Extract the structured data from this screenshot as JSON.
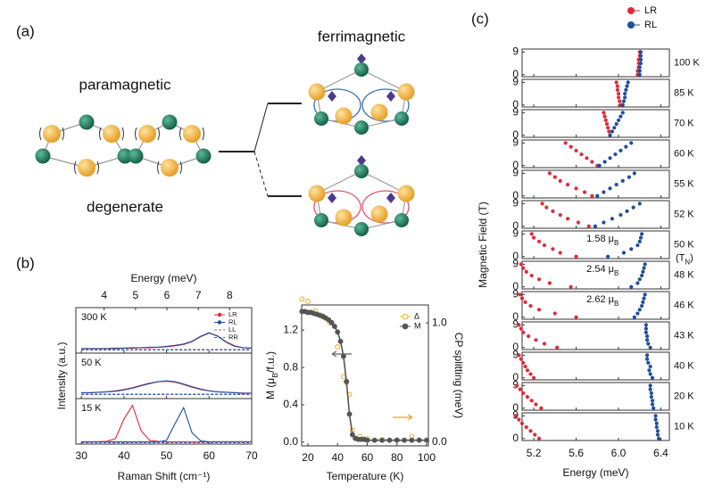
{
  "figure": {
    "panel_labels": [
      "(a)",
      "(b)",
      "(c)"
    ]
  },
  "diagram": {
    "top_left": "paramagnetic",
    "bottom_left": "degenerate",
    "top_right": "ferrimagnetic"
  },
  "chart_data": [
    {
      "type": "spectra",
      "xlabel": "Raman Shift (cm⁻¹)",
      "x2label": "Energy (meV)",
      "ylabel": "Intensity (a.u.)",
      "xlim": [
        28.7,
        70
      ],
      "xticks": [
        30,
        40,
        50,
        60,
        70
      ],
      "x2lim": [
        3.1,
        8.7
      ],
      "x2ticks": [
        4,
        5,
        6,
        7,
        8
      ],
      "ylim": [
        0,
        1
      ],
      "legend_position": "upper right",
      "series": [
        {
          "name": "LR",
          "color": "#e02a3a",
          "line": "solid",
          "marker": "circle"
        },
        {
          "name": "RL",
          "color": "#1f4e9c",
          "line": "solid",
          "marker": "circle"
        },
        {
          "name": "LL",
          "color": "#d0508c",
          "line": "dashed",
          "marker": "none"
        },
        {
          "name": "RR",
          "color": "#3a5fa8",
          "line": "dashed",
          "marker": "none"
        }
      ],
      "x": [
        30,
        32,
        34,
        36,
        38,
        40,
        42,
        44,
        46,
        48,
        50,
        52,
        54,
        56,
        58,
        60,
        62,
        64,
        66,
        68,
        70
      ],
      "panels": [
        {
          "label": "300 K",
          "values": [
            [
              0.1,
              0.1,
              0.1,
              0.1,
              0.1,
              0.11,
              0.11,
              0.12,
              0.12,
              0.13,
              0.14,
              0.16,
              0.19,
              0.25,
              0.36,
              0.44,
              0.38,
              0.25,
              0.16,
              0.12,
              0.11
            ],
            [
              0.1,
              0.1,
              0.1,
              0.1,
              0.11,
              0.11,
              0.12,
              0.12,
              0.13,
              0.13,
              0.15,
              0.17,
              0.2,
              0.26,
              0.37,
              0.45,
              0.37,
              0.24,
              0.15,
              0.12,
              0.11
            ],
            [
              0.08,
              0.08,
              0.08,
              0.08,
              0.08,
              0.08,
              0.08,
              0.08,
              0.08,
              0.08,
              0.08,
              0.08,
              0.08,
              0.08,
              0.08,
              0.08,
              0.08,
              0.08,
              0.08,
              0.08,
              0.08
            ],
            [
              0.07,
              0.07,
              0.07,
              0.07,
              0.07,
              0.07,
              0.07,
              0.07,
              0.07,
              0.07,
              0.07,
              0.07,
              0.07,
              0.07,
              0.07,
              0.07,
              0.07,
              0.07,
              0.07,
              0.07,
              0.07
            ]
          ]
        },
        {
          "label": "50 K",
          "values": [
            [
              0.13,
              0.13,
              0.14,
              0.15,
              0.17,
              0.2,
              0.24,
              0.29,
              0.34,
              0.37,
              0.38,
              0.36,
              0.31,
              0.25,
              0.2,
              0.17,
              0.15,
              0.14,
              0.13,
              0.12,
              0.12
            ],
            [
              0.13,
              0.13,
              0.14,
              0.15,
              0.16,
              0.19,
              0.23,
              0.28,
              0.33,
              0.37,
              0.39,
              0.37,
              0.32,
              0.26,
              0.21,
              0.17,
              0.15,
              0.14,
              0.13,
              0.12,
              0.12
            ],
            [
              0.1,
              0.1,
              0.1,
              0.1,
              0.1,
              0.1,
              0.1,
              0.1,
              0.1,
              0.1,
              0.1,
              0.1,
              0.1,
              0.1,
              0.1,
              0.1,
              0.1,
              0.1,
              0.1,
              0.1,
              0.1
            ],
            [
              0.09,
              0.09,
              0.09,
              0.09,
              0.09,
              0.09,
              0.09,
              0.09,
              0.09,
              0.09,
              0.09,
              0.09,
              0.09,
              0.09,
              0.09,
              0.09,
              0.09,
              0.09,
              0.09,
              0.09,
              0.09
            ]
          ]
        },
        {
          "label": "15 K",
          "values": [
            [
              0.05,
              0.05,
              0.05,
              0.06,
              0.12,
              0.55,
              0.85,
              0.3,
              0.08,
              0.06,
              0.05,
              0.05,
              0.05,
              0.05,
              0.05,
              0.05,
              0.05,
              0.05,
              0.05,
              0.05,
              0.05
            ],
            [
              0.05,
              0.05,
              0.05,
              0.05,
              0.05,
              0.05,
              0.05,
              0.05,
              0.05,
              0.05,
              0.08,
              0.45,
              0.8,
              0.25,
              0.07,
              0.05,
              0.05,
              0.05,
              0.05,
              0.05,
              0.05
            ],
            [
              0.04,
              0.04,
              0.04,
              0.04,
              0.04,
              0.04,
              0.04,
              0.04,
              0.04,
              0.04,
              0.04,
              0.04,
              0.04,
              0.04,
              0.04,
              0.04,
              0.04,
              0.04,
              0.04,
              0.04,
              0.04
            ],
            [
              0.03,
              0.03,
              0.03,
              0.03,
              0.03,
              0.03,
              0.03,
              0.03,
              0.03,
              0.03,
              0.03,
              0.03,
              0.03,
              0.03,
              0.03,
              0.03,
              0.03,
              0.03,
              0.03,
              0.03,
              0.03
            ]
          ]
        }
      ]
    },
    {
      "type": "dualaxis",
      "xlabel": "Temperature (K)",
      "ylabel": {
        "pre": "M (μ",
        "sub": "B",
        "post": "/f.u.)"
      },
      "y2label": "CP splitting (meV)",
      "y2color": "#e8a82a",
      "xlim": [
        15.8,
        101.2
      ],
      "xticks": [
        20,
        40,
        60,
        80,
        100
      ],
      "ylim": [
        -0.04,
        1.47
      ],
      "yticks": [
        {
          "value": 0,
          "label": "0.0"
        },
        {
          "value": 0.4,
          "label": "0.4"
        },
        {
          "value": 0.8,
          "label": "0.8"
        },
        {
          "value": 1.2,
          "label": "1.2"
        }
      ],
      "y2lim": [
        -0.03,
        1.15
      ],
      "y2ticks": [
        {
          "value": 0,
          "label": "0.0"
        },
        {
          "value": 1,
          "label": "1.0"
        }
      ],
      "legend_position": "upper right",
      "series": [
        {
          "name": "Δ",
          "color": "#f2b134",
          "marker": "open-circle",
          "axis": "y2",
          "x": [
            16,
            20,
            25,
            30,
            35,
            40,
            44,
            46,
            48,
            50,
            55,
            60,
            70,
            80,
            90,
            95
          ],
          "values": [
            1.2,
            1.18,
            1.1,
            1.05,
            1.0,
            0.8,
            0.55,
            0.5,
            0.4,
            0.1,
            0.05,
            0.03,
            0.02,
            0.02,
            0.05,
            0.02
          ]
        },
        {
          "name": "M",
          "color": "#555555",
          "marker": "filled-circle",
          "axis": "y",
          "x": [
            16,
            18,
            20,
            22,
            24,
            26,
            28,
            30,
            32,
            34,
            36,
            38,
            40,
            42,
            44,
            46,
            48,
            50,
            52,
            54,
            56,
            58,
            60,
            65,
            70,
            75,
            80,
            85,
            90,
            95,
            100
          ],
          "values": [
            1.4,
            1.4,
            1.39,
            1.39,
            1.38,
            1.37,
            1.36,
            1.35,
            1.33,
            1.31,
            1.28,
            1.24,
            1.18,
            1.08,
            0.92,
            0.65,
            0.3,
            0.08,
            0.04,
            0.03,
            0.03,
            0.03,
            0.02,
            0.02,
            0.02,
            0.02,
            0.02,
            0.02,
            0.02,
            0.02,
            0.02
          ]
        }
      ]
    },
    {
      "type": "scatter",
      "xlabel": "Energy (meV)",
      "ylabel": "Magnetic Field (T)",
      "xlim": [
        5.09,
        6.48
      ],
      "xticks": [
        5.2,
        5.6,
        {
          "value": 6,
          "label": "6.0"
        },
        6.4
      ],
      "ylim": [
        -0.8,
        10.2
      ],
      "yticks": [
        0,
        9
      ],
      "legend_position": "upper right",
      "series": [
        {
          "name": "LR",
          "color": "#e02a3a"
        },
        {
          "name": "RL",
          "color": "#1f4e9c"
        }
      ],
      "fields": [
        0,
        1.5,
        3,
        4.5,
        6,
        7.5,
        9
      ],
      "panels": [
        {
          "label": "100 K",
          "values": [
            [
              6.18,
              6.18,
              6.19,
              6.19,
              6.19,
              6.2,
              6.2
            ],
            [
              6.2,
              6.2,
              6.2,
              6.21,
              6.21,
              6.21,
              6.21
            ]
          ]
        },
        {
          "label": "85 K",
          "values": [
            [
              6.02,
              6.01,
              6.0,
              6.0,
              5.99,
              5.99,
              5.98
            ],
            [
              6.04,
              6.05,
              6.06,
              6.06,
              6.07,
              6.08,
              6.09
            ]
          ]
        },
        {
          "label": "70 K",
          "values": [
            [
              5.92,
              5.91,
              5.9,
              5.89,
              5.88,
              5.87,
              5.86
            ],
            [
              5.92,
              5.94,
              5.96,
              5.98,
              6.0,
              6.02,
              6.04
            ]
          ]
        },
        {
          "label": "60 K",
          "values": [
            [
              5.8,
              5.75,
              5.7,
              5.65,
              5.6,
              5.55,
              5.5
            ],
            [
              5.82,
              5.87,
              5.92,
              5.97,
              6.02,
              6.07,
              6.12
            ]
          ]
        },
        {
          "label": "55 K",
          "values": [
            [
              5.75,
              5.68,
              5.6,
              5.52,
              5.45,
              5.4,
              5.35
            ],
            [
              5.8,
              5.86,
              5.92,
              5.98,
              6.04,
              6.1,
              6.15
            ]
          ]
        },
        {
          "label": "52 K",
          "values": [
            [
              5.72,
              5.62,
              5.52,
              5.45,
              5.38,
              5.32,
              5.28
            ],
            [
              5.78,
              5.86,
              5.94,
              6.02,
              6.08,
              6.14,
              6.2
            ]
          ]
        },
        {
          "label": "50 K",
          "note": {
            "pre": "(T",
            "sub": "N",
            "post": ")"
          },
          "annotation": {
            "pre": "1.58 μ",
            "sub": "B"
          },
          "values": [
            [
              5.6,
              5.45,
              5.38,
              5.3,
              5.25,
              5.2,
              5.18
            ],
            [
              5.9,
              6.05,
              6.12,
              6.18,
              6.2,
              6.21,
              6.22
            ]
          ]
        },
        {
          "label": "48 K",
          "annotation": {
            "pre": "2.54 μ",
            "sub": "B"
          },
          "values": [
            [
              5.55,
              5.35,
              5.25,
              5.18,
              5.13,
              5.1,
              5.08
            ],
            [
              6.12,
              6.18,
              6.2,
              6.22,
              6.23,
              6.24,
              6.25
            ]
          ]
        },
        {
          "label": "46 K",
          "annotation": {
            "pre": "2.62 μ",
            "sub": "B"
          },
          "values": [
            [
              5.6,
              5.4,
              5.25,
              5.17,
              5.12,
              5.09,
              5.07
            ],
            [
              6.15,
              6.18,
              6.2,
              6.22,
              6.23,
              6.24,
              6.25
            ]
          ]
        },
        {
          "label": "43 K",
          "values": [
            [
              5.42,
              5.3,
              5.22,
              5.15,
              5.1,
              5.08,
              5.06
            ],
            [
              6.3,
              6.28,
              6.27,
              6.27,
              6.26,
              6.26,
              6.26
            ]
          ]
        },
        {
          "label": "40 K",
          "values": [
            [
              5.2,
              5.17,
              5.14,
              5.12,
              5.1,
              5.08,
              5.06
            ],
            [
              6.32,
              6.3,
              6.29,
              6.3,
              6.28,
              6.27,
              6.27
            ]
          ]
        },
        {
          "label": "20 K",
          "values": [
            [
              5.27,
              5.22,
              5.18,
              5.14,
              5.1,
              5.07,
              5.04
            ],
            [
              6.33,
              6.32,
              6.32,
              6.31,
              6.31,
              6.3,
              6.3
            ]
          ]
        },
        {
          "label": "10 K",
          "values": [
            [
              5.25,
              5.21,
              5.17,
              5.13,
              5.09,
              5.06,
              5.03
            ],
            [
              6.38,
              6.37,
              6.37,
              6.36,
              6.36,
              6.35,
              6.35
            ]
          ]
        }
      ]
    }
  ]
}
